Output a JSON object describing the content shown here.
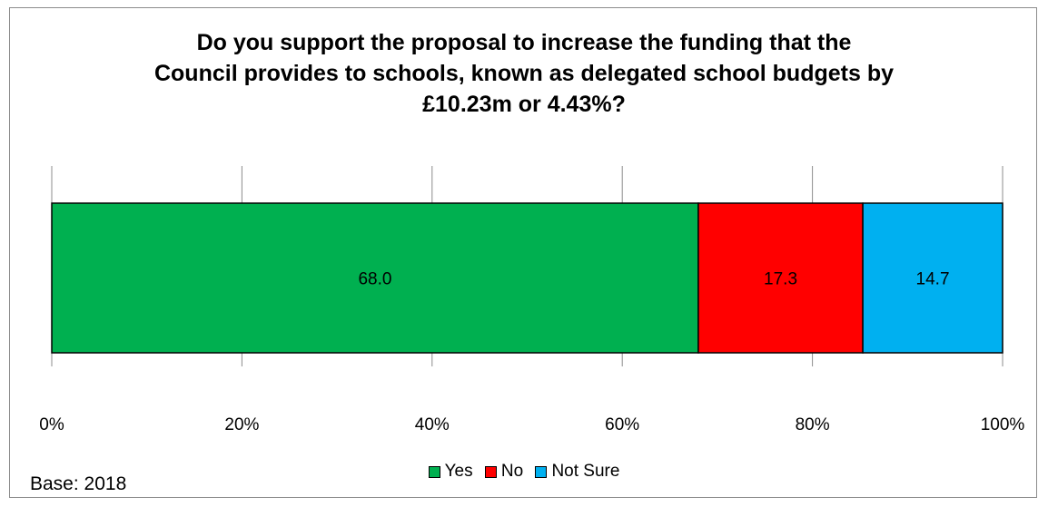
{
  "chart_data": {
    "type": "bar",
    "orientation": "horizontal",
    "stacked": "100%",
    "title": [
      "Do you support the proposal to increase the funding that the",
      "Council provides to schools, known as delegated school budgets by",
      "£10.23m or 4.43%?"
    ],
    "series": [
      {
        "name": "Yes",
        "value": 68.0,
        "label": "68.0",
        "color": "#00B050"
      },
      {
        "name": "No",
        "value": 17.3,
        "label": "17.3",
        "color": "#FF0000"
      },
      {
        "name": "Not Sure",
        "value": 14.7,
        "label": "14.7",
        "color": "#00B0F0"
      }
    ],
    "xlim": [
      0,
      100
    ],
    "xticks": [
      "0%",
      "20%",
      "40%",
      "60%",
      "80%",
      "100%"
    ],
    "grid": true,
    "legend_position": "bottom"
  },
  "footer": {
    "base_text": "Base: 2018"
  }
}
